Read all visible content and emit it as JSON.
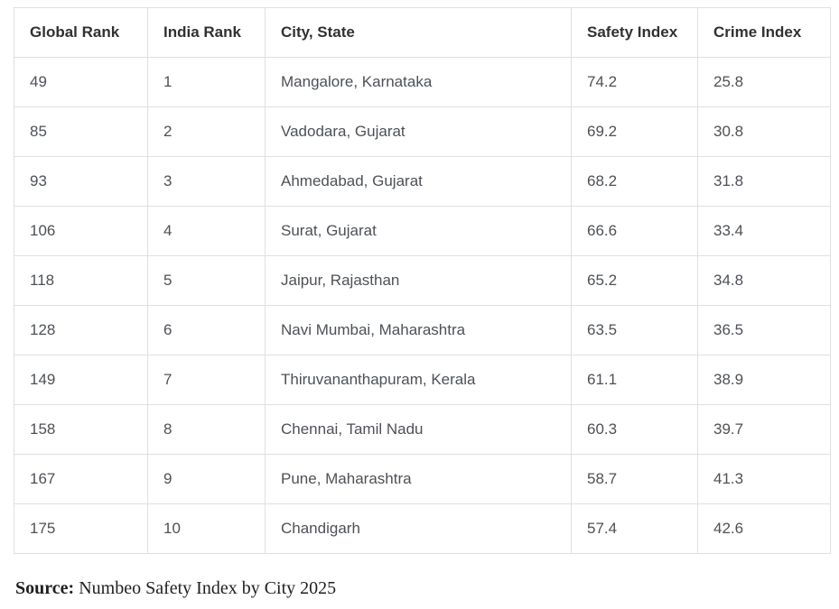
{
  "table": {
    "columns": [
      {
        "key": "global_rank",
        "label": "Global Rank"
      },
      {
        "key": "india_rank",
        "label": "India Rank"
      },
      {
        "key": "city_state",
        "label": "City, State"
      },
      {
        "key": "safety_index",
        "label": "Safety Index"
      },
      {
        "key": "crime_index",
        "label": "Crime Index"
      }
    ],
    "rows": [
      {
        "global_rank": "49",
        "india_rank": "1",
        "city_state": "Mangalore, Karnataka",
        "safety_index": "74.2",
        "crime_index": "25.8"
      },
      {
        "global_rank": "85",
        "india_rank": "2",
        "city_state": "Vadodara, Gujarat",
        "safety_index": "69.2",
        "crime_index": "30.8"
      },
      {
        "global_rank": "93",
        "india_rank": "3",
        "city_state": "Ahmedabad, Gujarat",
        "safety_index": "68.2",
        "crime_index": "31.8"
      },
      {
        "global_rank": "106",
        "india_rank": "4",
        "city_state": "Surat, Gujarat",
        "safety_index": "66.6",
        "crime_index": "33.4"
      },
      {
        "global_rank": "118",
        "india_rank": "5",
        "city_state": "Jaipur, Rajasthan",
        "safety_index": "65.2",
        "crime_index": "34.8"
      },
      {
        "global_rank": "128",
        "india_rank": "6",
        "city_state": "Navi Mumbai, Maharashtra",
        "safety_index": "63.5",
        "crime_index": "36.5"
      },
      {
        "global_rank": "149",
        "india_rank": "7",
        "city_state": "Thiruvananthapuram, Kerala",
        "safety_index": "61.1",
        "crime_index": "38.9"
      },
      {
        "global_rank": "158",
        "india_rank": "8",
        "city_state": "Chennai, Tamil Nadu",
        "safety_index": "60.3",
        "crime_index": "39.7"
      },
      {
        "global_rank": "167",
        "india_rank": "9",
        "city_state": "Pune, Maharashtra",
        "safety_index": "58.7",
        "crime_index": "41.3"
      },
      {
        "global_rank": "175",
        "india_rank": "10",
        "city_state": "Chandigarh",
        "safety_index": "57.4",
        "crime_index": "42.6"
      }
    ]
  },
  "source": {
    "label": "Source:",
    "text": " Numbeo Safety Index by City 2025"
  },
  "colors": {
    "background": "#ffffff",
    "border": "#e0e0e0",
    "header_text": "#303134",
    "cell_text": "#4d5156",
    "source_text": "#1f1f1f"
  }
}
